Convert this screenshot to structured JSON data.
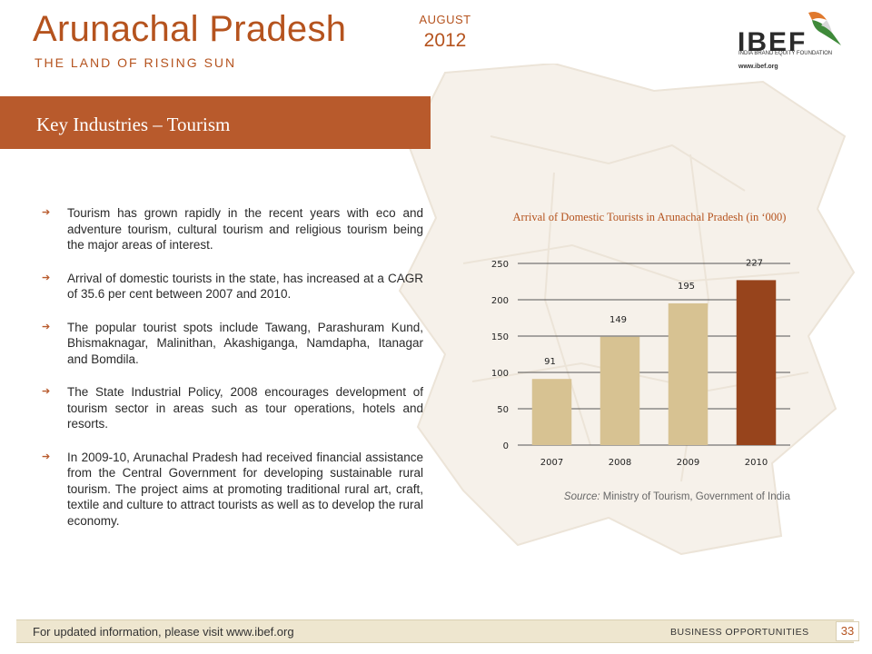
{
  "header": {
    "title": "Arunachal Pradesh",
    "subtitle": "THE LAND OF RISING SUN",
    "month": "AUGUST",
    "year": "2012"
  },
  "logo": {
    "word": "IBEF",
    "tagline": "INDIA BRAND EQUITY FOUNDATION",
    "url": "www.ibef.org"
  },
  "banner": {
    "title": "Key Industries – Tourism"
  },
  "bullets": [
    "Tourism has grown rapidly in the recent years with eco and adventure tourism, cultural tourism and religious tourism being the major areas of interest.",
    "Arrival of domestic tourists in the state, has increased at a CAGR of 35.6 per cent between 2007 and 2010.",
    "The popular tourist spots include Tawang, Parashuram Kund, Bhismaknagar, Malinithan, Akashiganga, Namdapha, Itanagar and Bomdila.",
    "The State Industrial Policy, 2008 encourages development of tourism sector in areas such as tour operations, hotels and resorts.",
    "In 2009-10, Arunachal Pradesh had received financial assistance from the Central Government for developing sustainable rural tourism. The project aims at promoting traditional rural art, craft, textile and culture to attract tourists as well as to develop the rural economy."
  ],
  "bullet_icon": "arrow-right-icon",
  "chart_data": {
    "type": "bar",
    "title": "Arrival of Domestic Tourists in Arunachal Pradesh (in ‘000)",
    "categories": [
      "2007",
      "2008",
      "2009",
      "2010"
    ],
    "values": [
      91,
      149,
      195,
      227
    ],
    "data_labels": [
      "91",
      "149",
      "195",
      "227"
    ],
    "ylim": [
      0,
      250
    ],
    "yticks": [
      "0",
      "50",
      "100",
      "150",
      "200",
      "250"
    ],
    "xlabel": "",
    "ylabel": "",
    "grid": true,
    "legend": "none",
    "bar_colors": [
      "#d7c292",
      "#d7c292",
      "#d7c292",
      "#97441c"
    ]
  },
  "source": {
    "label": "Source:",
    "text": "Ministry of Tourism, Government of India"
  },
  "footer": {
    "text": "For updated information, please visit www.ibef.org",
    "section": "BUSINESS OPPORTUNITIES",
    "page": "33"
  },
  "colors": {
    "accent": "#b5531e",
    "banner": "#b85a2c",
    "footer_bg": "#eee6cf"
  }
}
